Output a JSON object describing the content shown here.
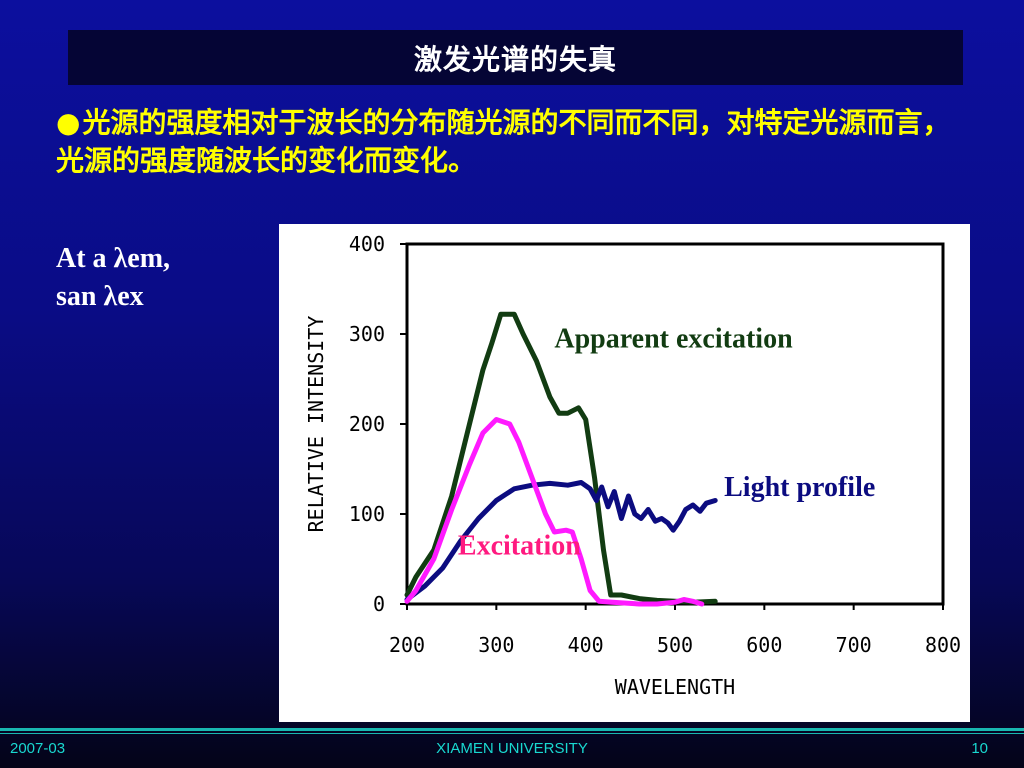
{
  "slide": {
    "title": "激发光谱的失真",
    "bullet_marker": "●",
    "bullet_text": "光源的强度相对于波长的分布随光源的不同而不同，对特定光源而言，光源的强度随波长的变化而变化。",
    "side_note_line1": "At a λem,",
    "side_note_line2": "san λex"
  },
  "footer": {
    "date": "2007-03",
    "org": "XIAMEN UNIVERSITY",
    "page": "10"
  },
  "chart_data": {
    "type": "line",
    "xlabel": "WAVELENGTH",
    "ylabel": "RELATIVE INTENSITY",
    "xlim": [
      200,
      800
    ],
    "ylim": [
      0,
      400
    ],
    "x_ticks": [
      "200",
      "300",
      "400",
      "500",
      "600",
      "700",
      "800"
    ],
    "y_ticks": [
      "0",
      "100",
      "200",
      "300",
      "400"
    ],
    "series": [
      {
        "name": "Apparent  excitation",
        "color": "#123c12",
        "points": [
          [
            200,
            10
          ],
          [
            210,
            30
          ],
          [
            230,
            60
          ],
          [
            250,
            120
          ],
          [
            270,
            200
          ],
          [
            285,
            260
          ],
          [
            295,
            290
          ],
          [
            305,
            322
          ],
          [
            320,
            322
          ],
          [
            330,
            300
          ],
          [
            345,
            270
          ],
          [
            360,
            230
          ],
          [
            370,
            212
          ],
          [
            380,
            212
          ],
          [
            392,
            218
          ],
          [
            400,
            205
          ],
          [
            410,
            140
          ],
          [
            420,
            60
          ],
          [
            428,
            10
          ],
          [
            440,
            10
          ],
          [
            460,
            6
          ],
          [
            480,
            4
          ],
          [
            500,
            3
          ],
          [
            520,
            2
          ],
          [
            545,
            3
          ]
        ]
      },
      {
        "name": "Light profile",
        "color": "#0c0c80",
        "points": [
          [
            200,
            5
          ],
          [
            220,
            20
          ],
          [
            240,
            40
          ],
          [
            260,
            70
          ],
          [
            280,
            95
          ],
          [
            300,
            115
          ],
          [
            320,
            128
          ],
          [
            340,
            132
          ],
          [
            360,
            134
          ],
          [
            380,
            132
          ],
          [
            395,
            135
          ],
          [
            405,
            128
          ],
          [
            412,
            115
          ],
          [
            418,
            130
          ],
          [
            425,
            108
          ],
          [
            432,
            125
          ],
          [
            440,
            95
          ],
          [
            448,
            120
          ],
          [
            455,
            100
          ],
          [
            462,
            95
          ],
          [
            470,
            105
          ],
          [
            478,
            92
          ],
          [
            485,
            95
          ],
          [
            492,
            90
          ],
          [
            498,
            82
          ],
          [
            505,
            92
          ],
          [
            512,
            105
          ],
          [
            520,
            110
          ],
          [
            528,
            103
          ],
          [
            535,
            112
          ],
          [
            545,
            115
          ]
        ]
      },
      {
        "name": "Excitation",
        "color": "#ff1aff",
        "points": [
          [
            200,
            3
          ],
          [
            210,
            15
          ],
          [
            230,
            50
          ],
          [
            250,
            105
          ],
          [
            270,
            155
          ],
          [
            285,
            190
          ],
          [
            300,
            205
          ],
          [
            315,
            200
          ],
          [
            325,
            180
          ],
          [
            340,
            140
          ],
          [
            355,
            100
          ],
          [
            365,
            80
          ],
          [
            378,
            82
          ],
          [
            385,
            80
          ],
          [
            395,
            50
          ],
          [
            405,
            15
          ],
          [
            415,
            3
          ],
          [
            430,
            2
          ],
          [
            460,
            0
          ],
          [
            480,
            0
          ],
          [
            500,
            2
          ],
          [
            510,
            5
          ],
          [
            520,
            3
          ],
          [
            530,
            0
          ]
        ]
      }
    ],
    "annotations": [
      {
        "text": "Apparent  excitation",
        "color": "#123c12",
        "x": 365,
        "y": 285
      },
      {
        "text": "Light profile",
        "color": "#0c0c80",
        "x": 555,
        "y": 120
      },
      {
        "text": "Excitation",
        "color": "#ff1a80",
        "x": 257,
        "y": 55
      }
    ]
  }
}
